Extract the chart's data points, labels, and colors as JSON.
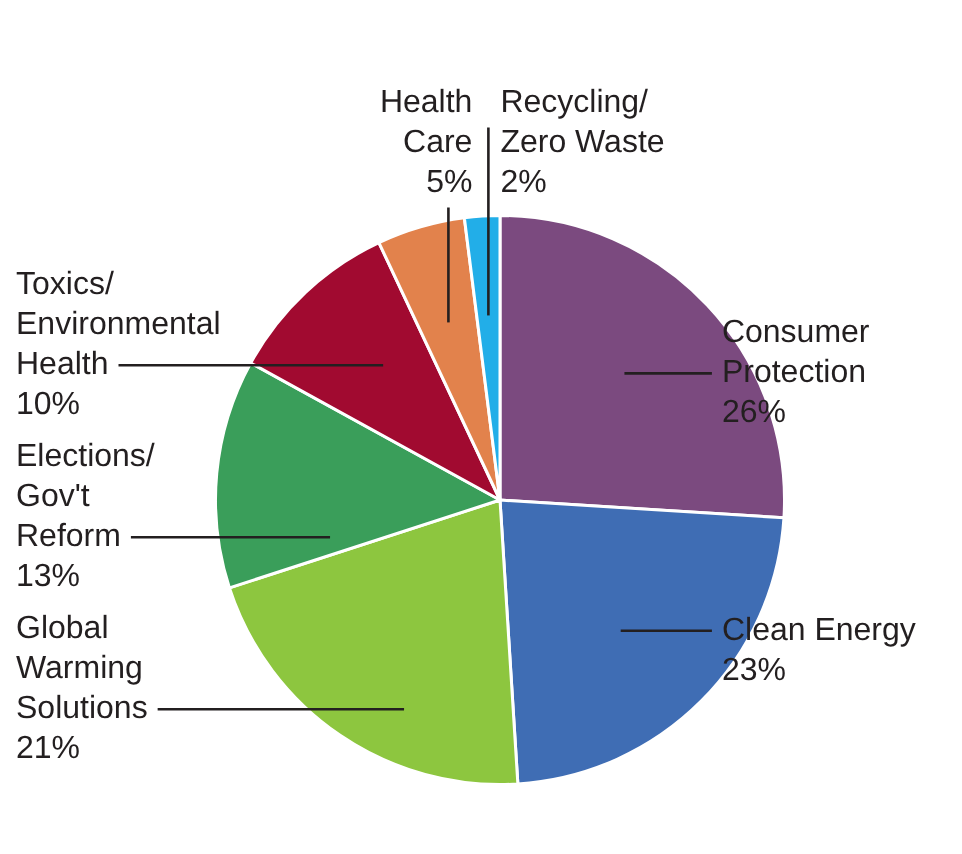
{
  "chart_data": {
    "type": "pie",
    "categories": [
      "Consumer\nProtection",
      "Clean Energy",
      "Global\nWarming\nSolutions",
      "Elections/\nGov't\nReform",
      "Toxics/\nEnvironmental\nHealth",
      "Health\nCare",
      "Recycling/\nZero Waste"
    ],
    "values": [
      26,
      23,
      21,
      13,
      10,
      5,
      2
    ],
    "value_labels": [
      "26%",
      "23%",
      "21%",
      "13%",
      "10%",
      "5%",
      "2%"
    ],
    "colors": [
      "#7b4a7f",
      "#3f6db4",
      "#8dc63f",
      "#3a9e5a",
      "#a10a30",
      "#e2824c",
      "#22aee8"
    ]
  }
}
